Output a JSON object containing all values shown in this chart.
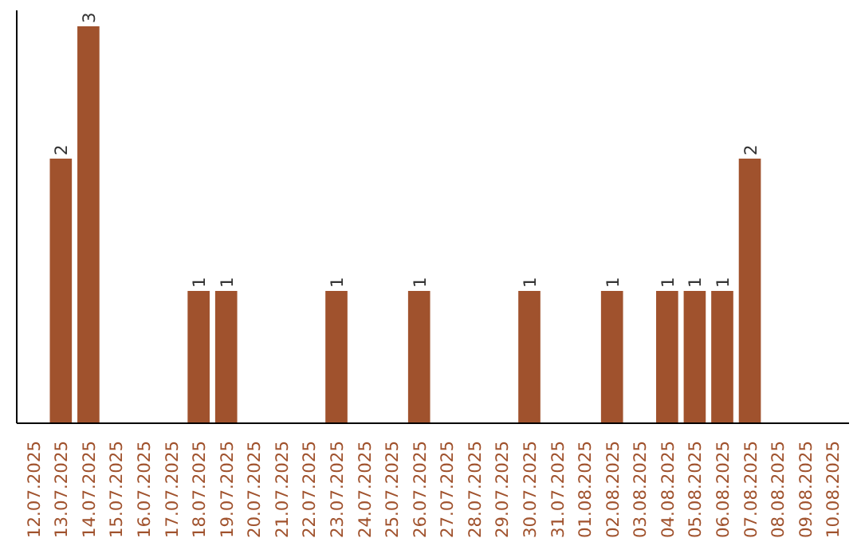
{
  "chart_data": {
    "type": "bar",
    "categories": [
      "12.07.2025",
      "13.07.2025",
      "14.07.2025",
      "15.07.2025",
      "16.07.2025",
      "17.07.2025",
      "18.07.2025",
      "19.07.2025",
      "20.07.2025",
      "21.07.2025",
      "22.07.2025",
      "23.07.2025",
      "24.07.2025",
      "25.07.2025",
      "26.07.2025",
      "27.07.2025",
      "28.07.2025",
      "29.07.2025",
      "30.07.2025",
      "31.07.2025",
      "01.08.2025",
      "02.08.2025",
      "03.08.2025",
      "04.08.2025",
      "05.08.2025",
      "06.08.2025",
      "07.08.2025",
      "08.08.2025",
      "09.08.2025",
      "10.08.2025"
    ],
    "values": [
      0,
      2,
      3,
      0,
      0,
      0,
      1,
      1,
      0,
      0,
      0,
      1,
      0,
      0,
      1,
      0,
      0,
      0,
      1,
      0,
      0,
      1,
      0,
      1,
      1,
      1,
      2,
      0,
      0,
      0
    ],
    "value_labels": [
      null,
      "2",
      "3",
      null,
      null,
      null,
      "1",
      "1",
      null,
      null,
      null,
      "1",
      null,
      null,
      "1",
      null,
      null,
      null,
      "1",
      null,
      null,
      "1",
      null,
      "1",
      "1",
      "1",
      "2",
      null,
      null,
      null
    ],
    "color": "#a0522d",
    "grid": false,
    "tick_labels": "x"
  }
}
